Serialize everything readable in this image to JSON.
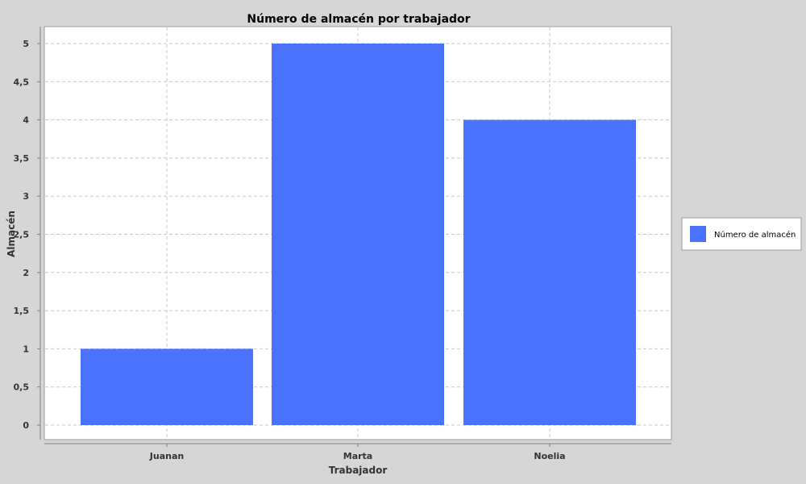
{
  "chart_data": {
    "type": "bar",
    "title": "Número de almacén por trabajador",
    "xlabel": "Trabajador",
    "ylabel": "Almacén",
    "categories": [
      "Juanan",
      "Marta",
      "Noelia"
    ],
    "series": [
      {
        "name": "Número de almacén",
        "values": [
          1,
          5,
          4
        ],
        "color": "#4a72ff"
      }
    ],
    "ylim": [
      0,
      5
    ],
    "yticks": [
      "0",
      "0,5",
      "1",
      "1,5",
      "2",
      "2,5",
      "3",
      "3,5",
      "4",
      "4,5",
      "5"
    ],
    "grid": true,
    "legend_position": "right"
  },
  "colors": {
    "background": "#d6d6d6",
    "plot_background": "#ffffff",
    "gridline": "#c8c8c8",
    "bar": "#4a72ff"
  }
}
